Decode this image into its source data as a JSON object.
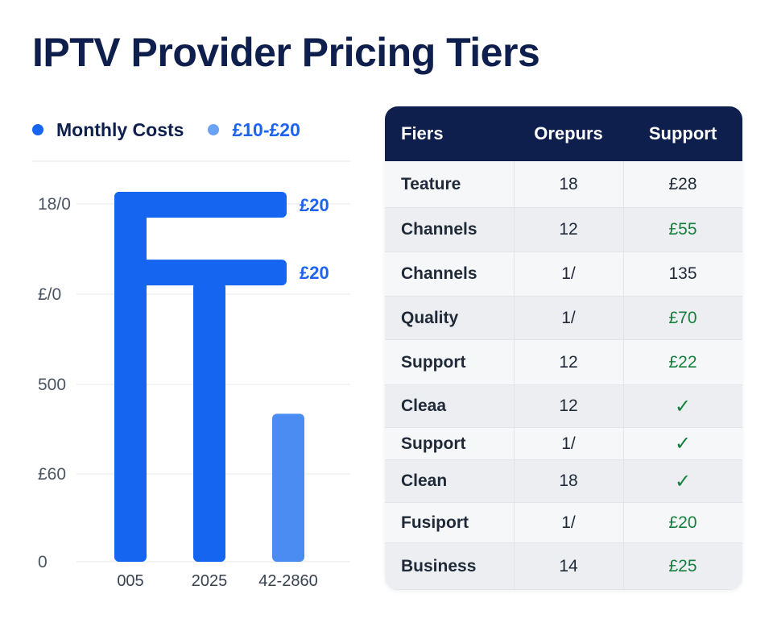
{
  "title": "IPTV Provider Pricing Tiers",
  "legend": [
    {
      "label": "Monthly Costs",
      "color": "#1565f0"
    },
    {
      "label": "£10-£20",
      "color": "#6aa3f5"
    }
  ],
  "colors": {
    "bar_primary": "#1565f0",
    "bar_light": "#4a8cf2",
    "label_blue": "#1e63f0",
    "header_bg": "#0f1f4d",
    "price_green": "#15803d"
  },
  "chart_data": {
    "type": "bar",
    "y_ticks": [
      "0",
      "£60",
      "500",
      "£/0",
      "18/0"
    ],
    "categories": [
      "005",
      "2025",
      "42-2860"
    ],
    "values": [
      1800,
      1360,
      720
    ],
    "ylim": [
      0,
      1800
    ],
    "annotations": [
      {
        "label": "£20",
        "value": 1800
      },
      {
        "label": "£20",
        "value": 1470
      }
    ]
  },
  "table": {
    "headers": [
      "Fiers",
      "Orepurs",
      "Support"
    ],
    "rows": [
      {
        "label": "Teature",
        "value": "18",
        "price": "£28",
        "price_style": "plain"
      },
      {
        "label": "Channels",
        "value": "12",
        "price": "£55",
        "price_style": "green"
      },
      {
        "label": "Channels",
        "value": "1/",
        "price": "135",
        "price_style": "plain"
      },
      {
        "label": "Quality",
        "value": "1/",
        "price": "£70",
        "price_style": "green"
      },
      {
        "label": "Support",
        "value": "12",
        "price": "£22",
        "price_style": "green"
      },
      {
        "label": "Cleaa",
        "value": "12",
        "price": "✓",
        "price_style": "check"
      },
      {
        "label": "Support",
        "value": "1/",
        "price": "✓",
        "price_style": "check"
      },
      {
        "label": "Clean",
        "value": "18",
        "price": "✓",
        "price_style": "check"
      },
      {
        "label": "Fusiport",
        "value": "1/",
        "price": "£20",
        "price_style": "green"
      },
      {
        "label": "Business",
        "value": "14",
        "price": "£25",
        "price_style": "green"
      }
    ]
  }
}
